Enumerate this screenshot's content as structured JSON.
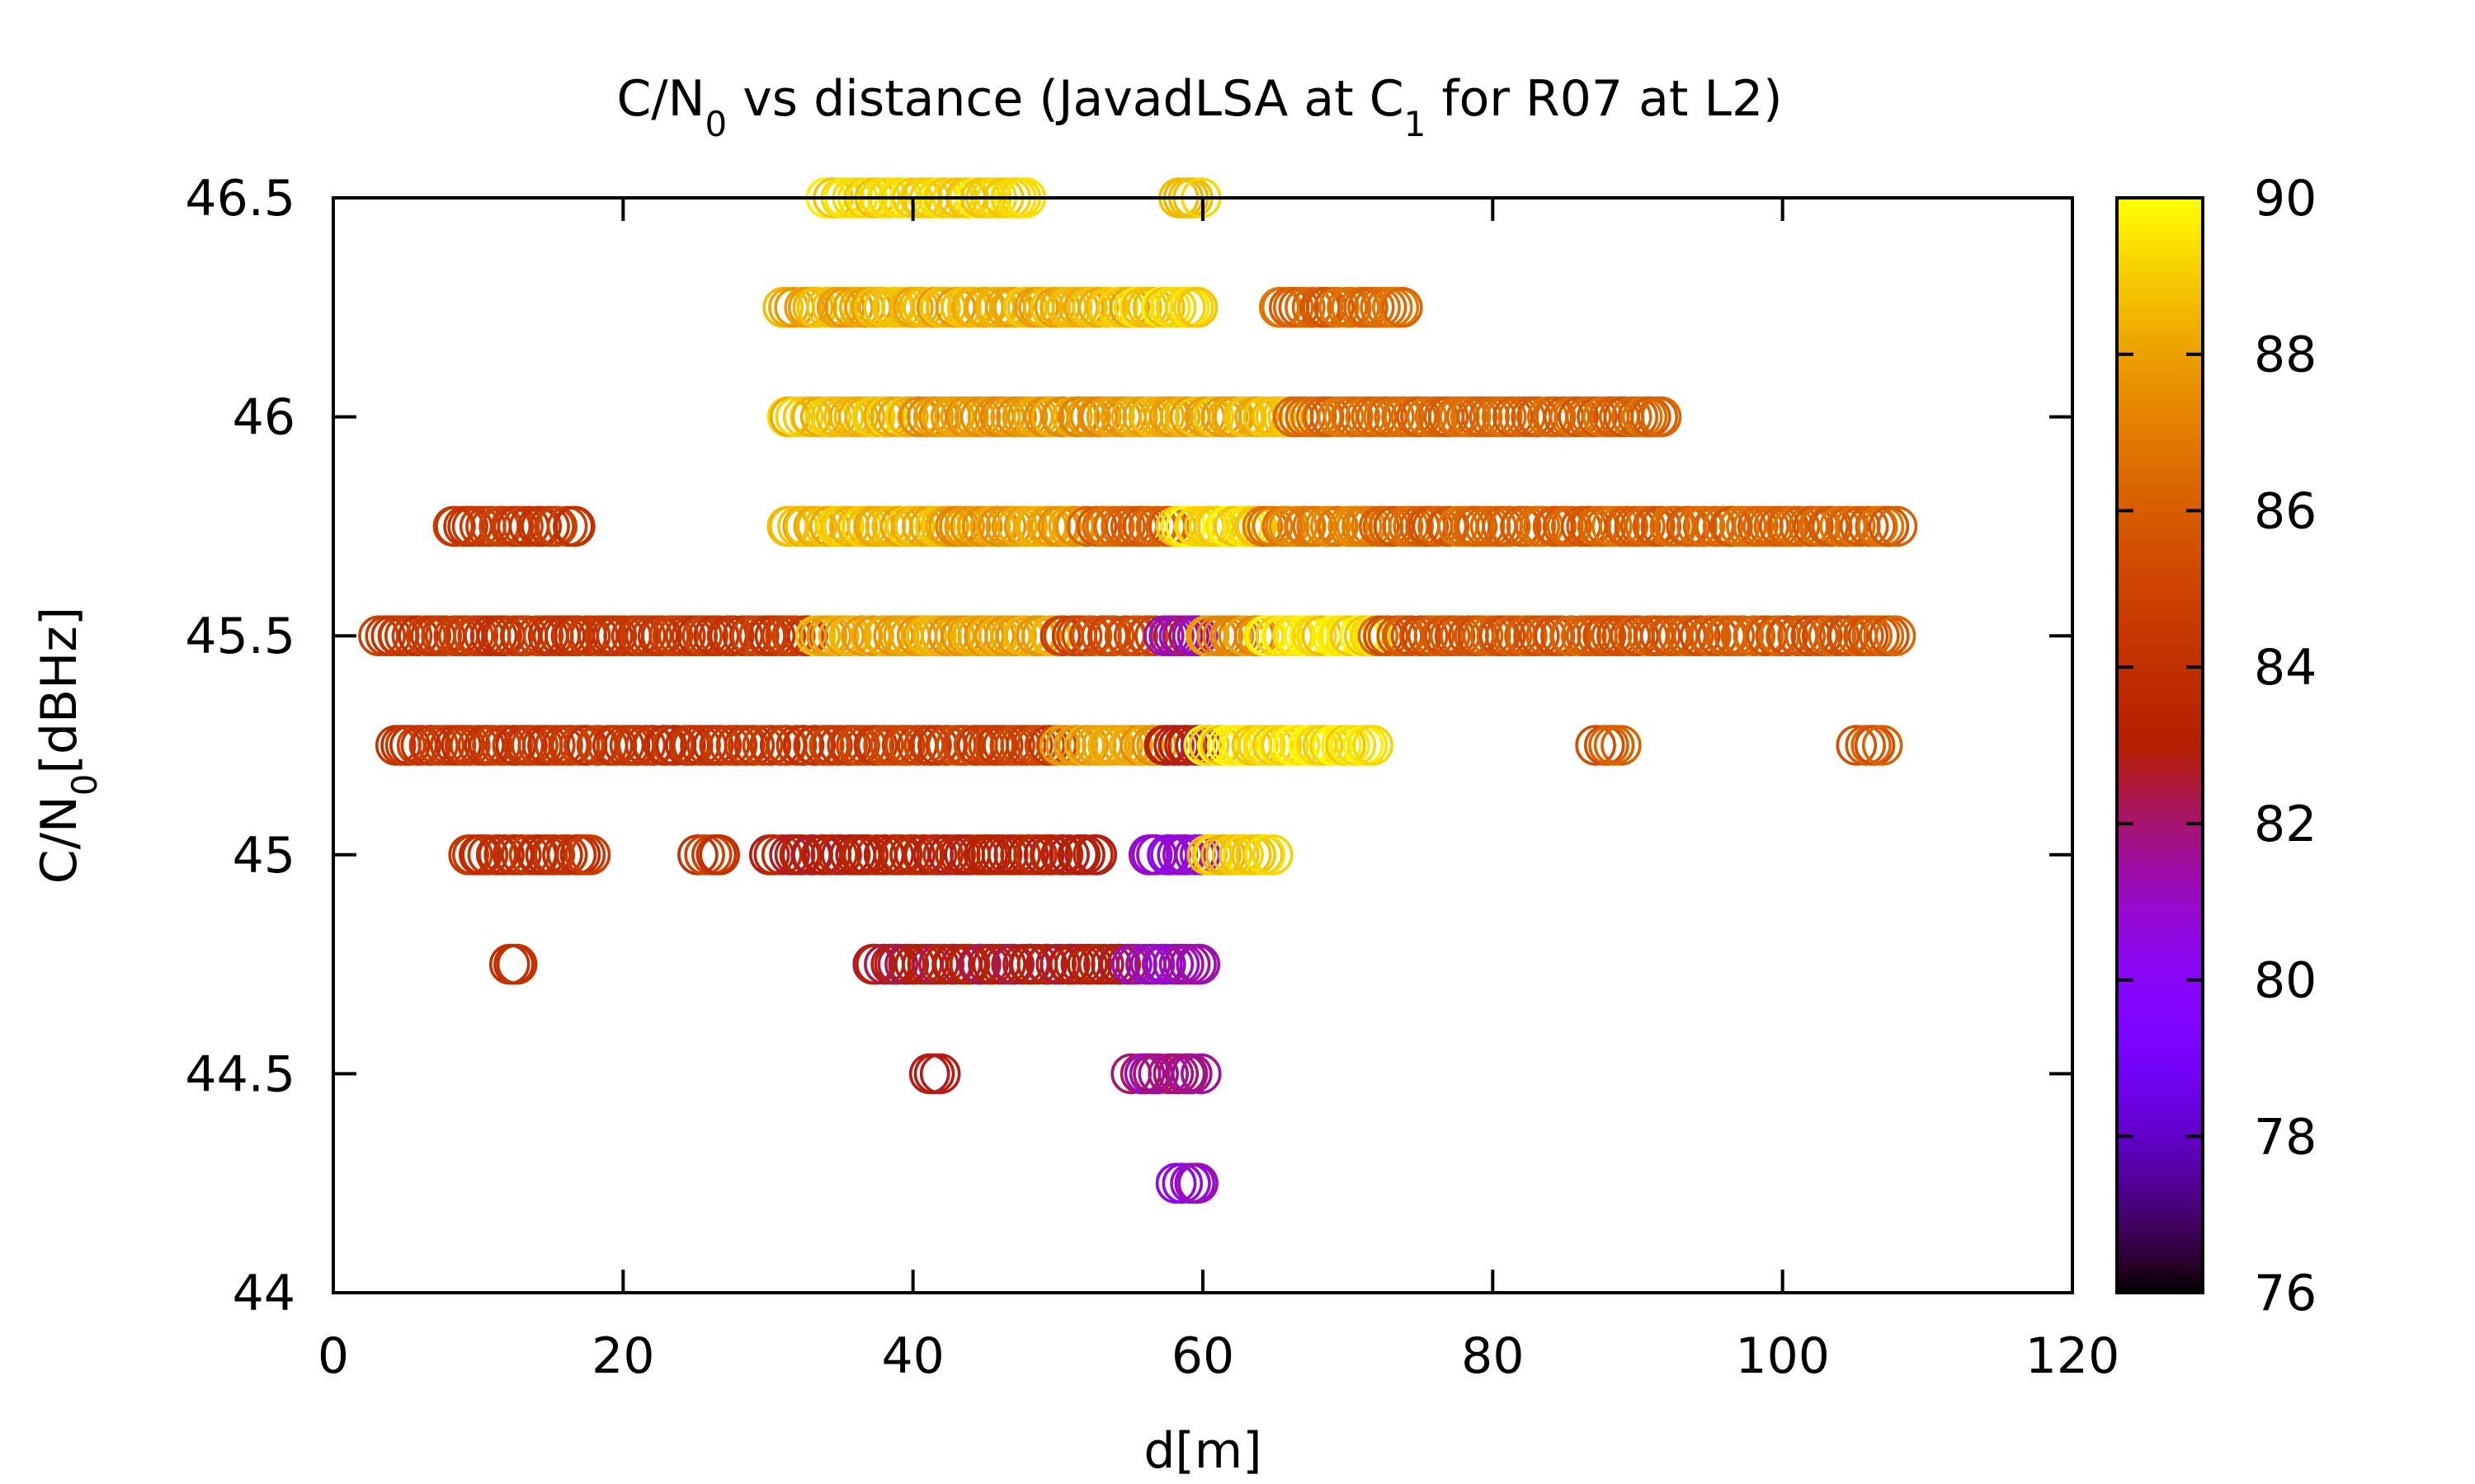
{
  "chart_data": {
    "type": "scatter",
    "title": {
      "parts": [
        {
          "text": "C/N",
          "sub": false
        },
        {
          "text": "0",
          "sub": true
        },
        {
          "text": " vs distance (JavadLSA at C",
          "sub": false
        },
        {
          "text": "1",
          "sub": true
        },
        {
          "text": " for R07 at L2)",
          "sub": false
        }
      ]
    },
    "xlabel": "d[m]",
    "ylabel": {
      "parts": [
        {
          "text": "C/N",
          "sub": false
        },
        {
          "text": "0",
          "sub": true
        },
        {
          "text": "[dBHz]",
          "sub": false
        }
      ]
    },
    "xlim": [
      0,
      120
    ],
    "ylim": [
      44,
      46.5
    ],
    "xticks": [
      0,
      20,
      40,
      60,
      80,
      100,
      120
    ],
    "yticks": [
      44,
      44.5,
      45,
      45.5,
      46,
      46.5
    ],
    "colorbar": {
      "range": [
        76,
        90
      ],
      "ticks": [
        76,
        78,
        80,
        82,
        84,
        86,
        88,
        90
      ],
      "palette": "gnuplot"
    },
    "marker": "open-circle",
    "grid": false,
    "legend": "none",
    "rows": [
      {
        "y": 46.5,
        "clusters": [
          [
            34,
            48,
            89.2
          ],
          [
            58,
            60,
            88.8
          ]
        ]
      },
      {
        "y": 46.25,
        "clusters": [
          [
            31,
            50,
            88.3
          ],
          [
            50,
            55,
            88.6
          ],
          [
            55,
            60,
            89.2
          ],
          [
            65,
            74,
            86.3
          ]
        ]
      },
      {
        "y": 46.0,
        "clusters": [
          [
            31,
            40,
            88.7
          ],
          [
            40,
            56,
            87.8
          ],
          [
            56,
            66,
            88.4
          ],
          [
            66,
            80,
            86.5
          ],
          [
            80,
            92,
            86.2
          ]
        ]
      },
      {
        "y": 45.75,
        "clusters": [
          [
            8,
            17,
            84.5
          ],
          [
            31,
            42,
            88.6
          ],
          [
            42,
            52,
            87.8
          ],
          [
            52,
            58,
            86.2
          ],
          [
            58,
            64,
            89.3
          ],
          [
            64,
            72,
            87.0
          ],
          [
            72,
            108,
            86.2
          ]
        ]
      },
      {
        "y": 45.5,
        "clusters": [
          [
            3,
            33,
            84.4
          ],
          [
            33,
            40,
            88.2
          ],
          [
            40,
            50,
            88.0
          ],
          [
            50,
            57,
            85.2
          ],
          [
            57,
            60,
            81.5
          ],
          [
            60,
            64,
            87.5
          ],
          [
            64,
            72,
            89.3
          ],
          [
            72,
            108,
            85.8
          ]
        ]
      },
      {
        "y": 45.25,
        "clusters": [
          [
            4,
            34,
            84.3
          ],
          [
            34,
            50,
            84.8
          ],
          [
            50,
            57,
            88.0
          ],
          [
            57,
            60,
            82.8
          ],
          [
            60,
            72,
            89.4
          ],
          [
            87,
            89,
            85.6
          ],
          [
            105,
            107,
            86.0
          ]
        ]
      },
      {
        "y": 45.0,
        "clusters": [
          [
            9,
            18,
            84.2
          ],
          [
            25,
            27,
            84.5
          ],
          [
            30,
            53,
            83.2
          ],
          [
            56,
            60,
            80.8
          ],
          [
            60,
            65,
            89.0
          ]
        ]
      },
      {
        "y": 44.75,
        "clusters": [
          [
            12,
            13,
            84.0
          ],
          [
            37,
            55,
            82.8
          ],
          [
            55,
            60,
            81.2
          ]
        ]
      },
      {
        "y": 44.5,
        "clusters": [
          [
            41,
            42,
            82.5
          ],
          [
            55,
            60,
            81.6
          ]
        ]
      },
      {
        "y": 44.25,
        "clusters": [
          [
            58,
            60,
            80.8
          ]
        ]
      }
    ]
  }
}
